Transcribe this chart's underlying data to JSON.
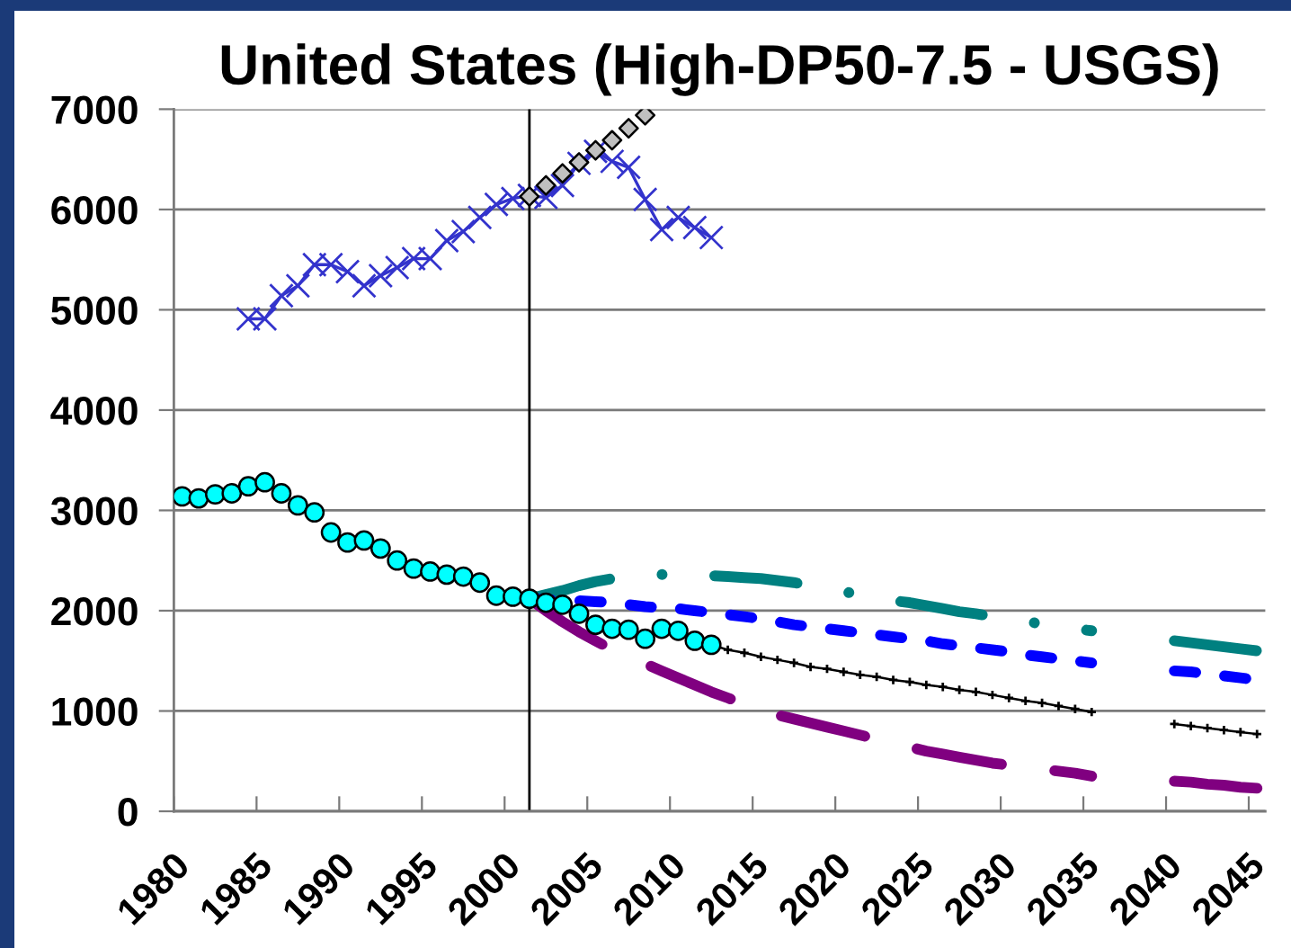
{
  "chart_data": {
    "type": "line",
    "title": "United States (High-DP50-7.5 - USGS)",
    "xlim": [
      1979.5,
      2045.5
    ],
    "xticks": [
      {
        "value": 1979.5,
        "label": "1980"
      },
      {
        "value": 1984.5,
        "label": "1985"
      },
      {
        "value": 1989.5,
        "label": "1990"
      },
      {
        "value": 1994.5,
        "label": "1995"
      },
      {
        "value": 1999.5,
        "label": "2000"
      },
      {
        "value": 2004.5,
        "label": "2005"
      },
      {
        "value": 2009.5,
        "label": "2010"
      },
      {
        "value": 2014.5,
        "label": "2015"
      },
      {
        "value": 2019.5,
        "label": "2020"
      },
      {
        "value": 2024.5,
        "label": "2025"
      },
      {
        "value": 2029.5,
        "label": "2030"
      },
      {
        "value": 2034.5,
        "label": "2035"
      },
      {
        "value": 2039.5,
        "label": "2040"
      },
      {
        "value": 2044.5,
        "label": "2045"
      }
    ],
    "ylim": [
      0,
      7000
    ],
    "yticks": [
      0,
      1000,
      2000,
      3000,
      4000,
      5000,
      6000,
      7000
    ],
    "grid": "y",
    "ref_lines": [
      {
        "axis": "x",
        "value": 2001,
        "color": "#000000"
      }
    ],
    "series": [
      {
        "color": "#008080",
        "line_style": "dashdot",
        "marker": "none",
        "x": [
          2001,
          2002,
          2003,
          2004,
          2005,
          2006,
          2007,
          2008,
          2009,
          2010,
          2011,
          2012,
          2013,
          2014,
          2015,
          2016,
          2017,
          2018,
          2019,
          2020,
          2021,
          2022,
          2023,
          2024,
          2025,
          2026,
          2027,
          2028,
          2029,
          2030,
          2031,
          2032,
          2033,
          2034,
          2035,
          2036,
          2037,
          2038,
          2039,
          2040,
          2041,
          2042,
          2043,
          2044,
          2045
        ],
        "values": [
          2120,
          2160,
          2200,
          2250,
          2290,
          2320,
          2340,
          2360,
          2360,
          2360,
          2360,
          2350,
          2340,
          2330,
          2320,
          2300,
          2280,
          2250,
          2220,
          2190,
          2160,
          2130,
          2100,
          2080,
          2050,
          2020,
          1990,
          1970,
          1940,
          1920,
          1890,
          1870,
          1840,
          1820,
          1800,
          null,
          null,
          null,
          null,
          1700,
          1680,
          1660,
          1640,
          1620,
          1600
        ]
      },
      {
        "color": "#0000ff",
        "line_style": "dashed",
        "marker": "none",
        "x": [
          2001,
          2002,
          2003,
          2004,
          2005,
          2006,
          2007,
          2008,
          2009,
          2010,
          2011,
          2012,
          2013,
          2014,
          2015,
          2016,
          2017,
          2018,
          2019,
          2020,
          2021,
          2022,
          2023,
          2024,
          2025,
          2026,
          2027,
          2028,
          2029,
          2030,
          2031,
          2032,
          2033,
          2034,
          2035,
          2036,
          2037,
          2038,
          2039,
          2040,
          2041,
          2042,
          2043,
          2044,
          2045
        ],
        "values": [
          2120,
          2110,
          2110,
          2100,
          2090,
          2080,
          2060,
          2040,
          2030,
          2020,
          2000,
          1980,
          1960,
          1940,
          1920,
          1890,
          1860,
          1840,
          1820,
          1800,
          1780,
          1760,
          1740,
          1720,
          1700,
          1670,
          1650,
          1630,
          1610,
          1590,
          1560,
          1540,
          1520,
          1500,
          1480,
          null,
          null,
          null,
          null,
          1400,
          1390,
          1370,
          1350,
          1330,
          1310
        ]
      },
      {
        "color": "#800080",
        "line_style": "longdash",
        "marker": "none",
        "x": [
          2001,
          2002,
          2003,
          2004,
          2005,
          2006,
          2007,
          2008,
          2009,
          2010,
          2011,
          2012,
          2013,
          2014,
          2015,
          2016,
          2017,
          2018,
          2019,
          2020,
          2021,
          2022,
          2023,
          2024,
          2025,
          2026,
          2027,
          2028,
          2029,
          2030,
          2031,
          2032,
          2033,
          2034,
          2035,
          2036,
          2037,
          2038,
          2039,
          2040,
          2041,
          2042,
          2043,
          2044,
          2045
        ],
        "values": [
          2120,
          2000,
          1890,
          1790,
          1700,
          1610,
          1530,
          1470,
          1400,
          1330,
          1260,
          1190,
          1130,
          1070,
          1010,
          960,
          920,
          880,
          840,
          800,
          760,
          720,
          680,
          640,
          600,
          570,
          540,
          510,
          480,
          460,
          440,
          420,
          400,
          380,
          350,
          null,
          null,
          null,
          null,
          300,
          290,
          270,
          260,
          240,
          230
        ]
      },
      {
        "color": "#000000",
        "line_style": "solid",
        "marker": "plus",
        "x": [
          2012,
          2013,
          2014,
          2015,
          2016,
          2017,
          2018,
          2019,
          2020,
          2021,
          2022,
          2023,
          2024,
          2025,
          2026,
          2027,
          2028,
          2029,
          2030,
          2031,
          2032,
          2033,
          2034,
          2035,
          2036,
          2037,
          2038,
          2039,
          2040,
          2041,
          2042,
          2043,
          2044,
          2045
        ],
        "values": [
          1660,
          1610,
          1580,
          1540,
          1510,
          1480,
          1440,
          1420,
          1390,
          1360,
          1340,
          1310,
          1290,
          1260,
          1240,
          1210,
          1190,
          1160,
          1130,
          1100,
          1080,
          1050,
          1020,
          990,
          null,
          null,
          null,
          null,
          870,
          850,
          830,
          810,
          790,
          770
        ]
      },
      {
        "type": "scatter",
        "color": "#00ffff",
        "marker": "circle",
        "x": [
          1980,
          1981,
          1982,
          1983,
          1984,
          1985,
          1986,
          1987,
          1988,
          1989,
          1990,
          1991,
          1992,
          1993,
          1994,
          1995,
          1996,
          1997,
          1998,
          1999,
          2000,
          2001,
          2002,
          2003,
          2004,
          2005,
          2006,
          2007,
          2008,
          2009,
          2010,
          2011,
          2012
        ],
        "values": [
          3140,
          3120,
          3160,
          3170,
          3240,
          3280,
          3170,
          3050,
          2980,
          2780,
          2680,
          2700,
          2620,
          2500,
          2420,
          2390,
          2360,
          2340,
          2280,
          2150,
          2140,
          2120,
          2080,
          2060,
          1970,
          1860,
          1820,
          1810,
          1720,
          1820,
          1800,
          1700,
          1660
        ]
      },
      {
        "color": "#3333cc",
        "line_style": "solid",
        "marker": "cross",
        "x": [
          1984,
          1985,
          1986,
          1987,
          1988,
          1989,
          1990,
          1991,
          1992,
          1993,
          1994,
          1995,
          1996,
          1997,
          1998,
          1999,
          2000,
          2001,
          2002,
          2003,
          2004,
          2005,
          2006,
          2007,
          2008,
          2009,
          2010,
          2011,
          2012
        ],
        "values": [
          4910,
          4910,
          5140,
          5240,
          5450,
          5450,
          5380,
          5240,
          5340,
          5420,
          5510,
          5510,
          5690,
          5780,
          5920,
          6050,
          6110,
          6140,
          6120,
          6240,
          6460,
          6580,
          6480,
          6420,
          6100,
          5800,
          5920,
          5820,
          5720
        ]
      },
      {
        "type": "scatter",
        "color": "#c0c0c0",
        "marker": "diamond",
        "x": [
          2001,
          2002,
          2003,
          2004,
          2005,
          2006,
          2007,
          2008
        ],
        "values": [
          6130,
          6240,
          6360,
          6470,
          6590,
          6690,
          6810,
          6940
        ]
      }
    ]
  }
}
